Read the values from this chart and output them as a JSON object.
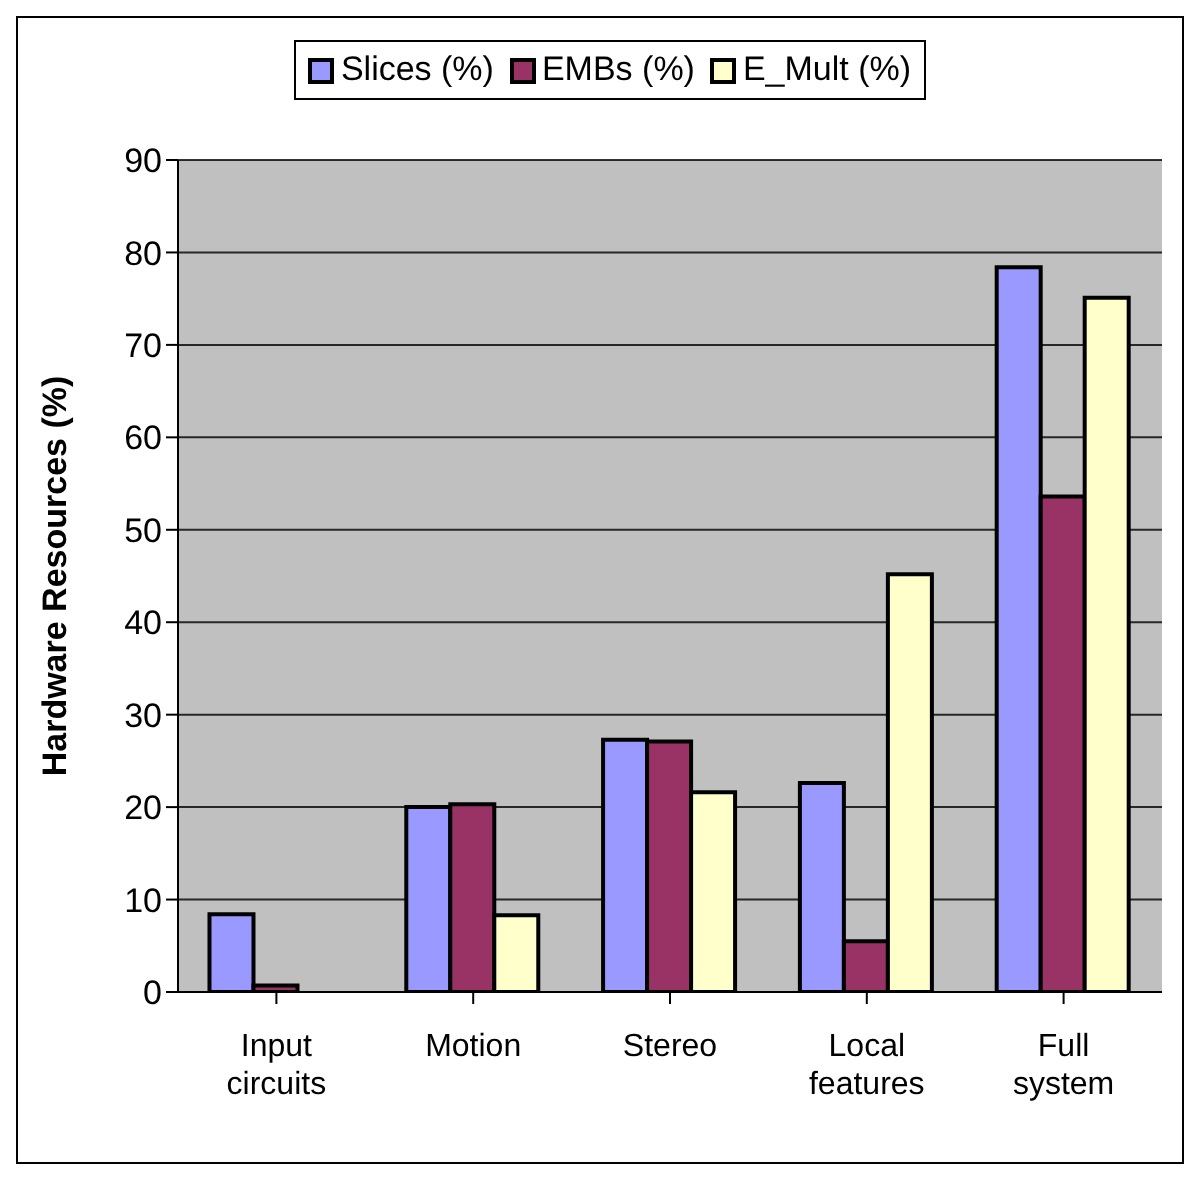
{
  "chart_data": {
    "type": "bar",
    "ylabel": "Hardware Resources (%)",
    "categories": [
      "Input circuits",
      "Motion",
      "Stereo",
      "Local features",
      "Full system"
    ],
    "series": [
      {
        "name": "Slices (%)",
        "color": "#9999ff",
        "values": [
          8.4,
          20.0,
          27.3,
          22.6,
          78.4
        ]
      },
      {
        "name": "EMBs (%)",
        "color": "#993366",
        "values": [
          0.7,
          20.3,
          27.1,
          5.5,
          53.6
        ]
      },
      {
        "name": "E_Mult (%)",
        "color": "#ffffcc",
        "values": [
          0,
          8.3,
          21.6,
          45.2,
          75.1
        ]
      }
    ],
    "ylim": [
      0,
      90
    ],
    "yticks": [
      0,
      10,
      20,
      30,
      40,
      50,
      60,
      70,
      80,
      90
    ],
    "grid": "y",
    "legend": "top"
  }
}
